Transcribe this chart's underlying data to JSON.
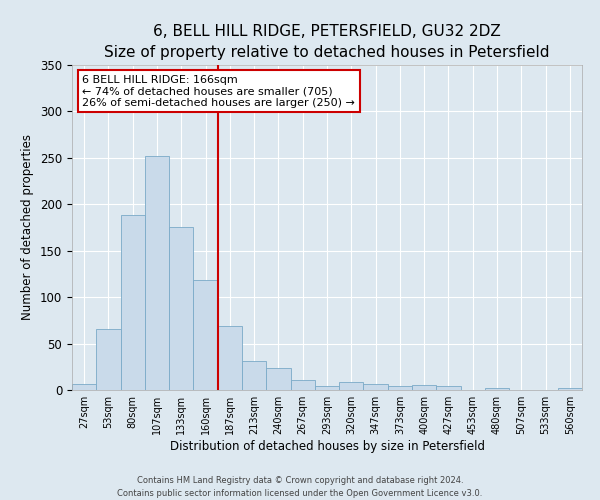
{
  "title": "6, BELL HILL RIDGE, PETERSFIELD, GU32 2DZ",
  "subtitle": "Size of property relative to detached houses in Petersfield",
  "xlabel": "Distribution of detached houses by size in Petersfield",
  "ylabel": "Number of detached properties",
  "bar_labels": [
    "27sqm",
    "53sqm",
    "80sqm",
    "107sqm",
    "133sqm",
    "160sqm",
    "187sqm",
    "213sqm",
    "240sqm",
    "267sqm",
    "293sqm",
    "320sqm",
    "347sqm",
    "373sqm",
    "400sqm",
    "427sqm",
    "453sqm",
    "480sqm",
    "507sqm",
    "533sqm",
    "560sqm"
  ],
  "bar_values": [
    7,
    66,
    188,
    252,
    176,
    119,
    69,
    31,
    24,
    11,
    4,
    9,
    6,
    4,
    5,
    4,
    0,
    2,
    0,
    0,
    2
  ],
  "bar_color": "#c9daea",
  "bar_edge_color": "#7aaac8",
  "vline_x": 5.5,
  "vline_color": "#cc0000",
  "annotation_title": "6 BELL HILL RIDGE: 166sqm",
  "annotation_line1": "← 74% of detached houses are smaller (705)",
  "annotation_line2": "26% of semi-detached houses are larger (250) →",
  "annotation_box_facecolor": "#ffffff",
  "annotation_box_edgecolor": "#cc0000",
  "ylim": [
    0,
    350
  ],
  "yticks": [
    0,
    50,
    100,
    150,
    200,
    250,
    300,
    350
  ],
  "background_color": "#dde8f0",
  "plot_bg_color": "#dde8f0",
  "footer1": "Contains HM Land Registry data © Crown copyright and database right 2024.",
  "footer2": "Contains public sector information licensed under the Open Government Licence v3.0.",
  "title_fontsize": 11,
  "subtitle_fontsize": 9.5,
  "annotation_fontsize": 8,
  "xlabel_fontsize": 8.5,
  "ylabel_fontsize": 8.5
}
